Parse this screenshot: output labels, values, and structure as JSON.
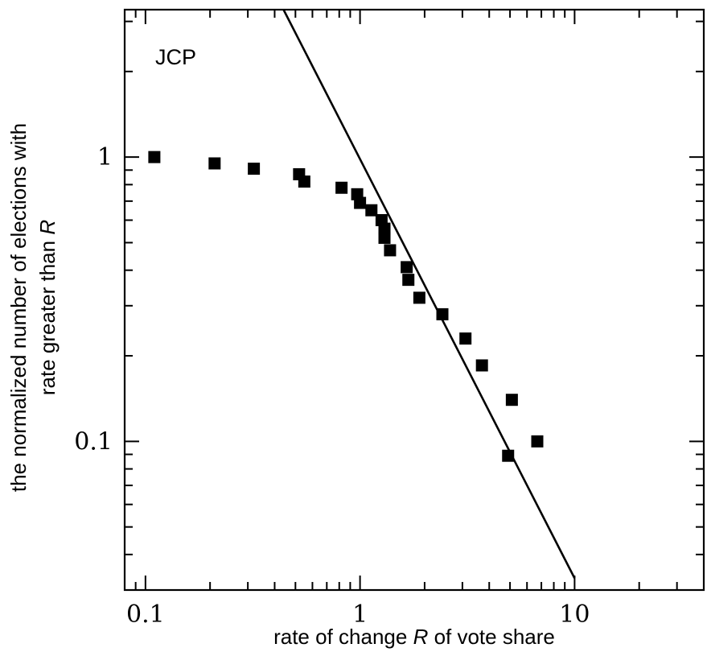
{
  "chart_data": {
    "type": "scatter",
    "title": "",
    "annotation": "JCP",
    "xlabel": {
      "before": "rate of change ",
      "italic": "R",
      "after": " of vote share"
    },
    "ylabel": {
      "line1": "the normalized number of elections with",
      "line2_before": "rate greater than ",
      "line2_italic": "R"
    },
    "x_scale": "log",
    "y_scale": "log",
    "xlim": [
      0.08,
      40
    ],
    "ylim": [
      0.03,
      3.3
    ],
    "x_tick_labels": [
      {
        "value": 0.1,
        "label": "0.1"
      },
      {
        "value": 1,
        "label": "1"
      },
      {
        "value": 10,
        "label": "10"
      }
    ],
    "y_tick_labels": [
      {
        "value": 0.1,
        "label": "0.1"
      },
      {
        "value": 1,
        "label": "1"
      }
    ],
    "grid": false,
    "series": [
      {
        "marker": "square",
        "color": "#000000",
        "points": [
          [
            0.11,
            1.0
          ],
          [
            0.21,
            0.95
          ],
          [
            0.32,
            0.91
          ],
          [
            0.52,
            0.87
          ],
          [
            0.55,
            0.82
          ],
          [
            0.82,
            0.78
          ],
          [
            0.97,
            0.74
          ],
          [
            1.0,
            0.69
          ],
          [
            1.13,
            0.65
          ],
          [
            1.26,
            0.6
          ],
          [
            1.3,
            0.56
          ],
          [
            1.3,
            0.52
          ],
          [
            1.38,
            0.47
          ],
          [
            1.65,
            0.41
          ],
          [
            1.68,
            0.37
          ],
          [
            1.89,
            0.32
          ],
          [
            2.42,
            0.28
          ],
          [
            3.1,
            0.23
          ],
          [
            3.7,
            0.185
          ],
          [
            5.1,
            0.14
          ],
          [
            6.7,
            0.1
          ],
          [
            4.9,
            0.089
          ]
        ]
      }
    ],
    "fit_line": {
      "type": "power_law",
      "color": "#000000",
      "points": [
        [
          0.44,
          3.3
        ],
        [
          10.0,
          0.033
        ]
      ]
    }
  }
}
